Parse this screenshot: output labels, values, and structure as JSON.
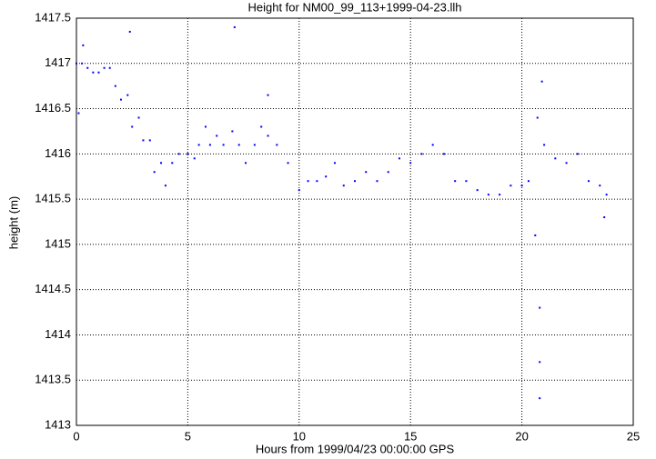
{
  "chart_data": {
    "type": "scatter",
    "title": "Height for NM00_99_113+1999-04-23.llh",
    "x_label": "Hours from 1999/04/23 00:00:00 GPS",
    "y_label": "height (m)",
    "xlim": [
      0,
      25
    ],
    "ylim": [
      1413,
      1417.5
    ],
    "xticks": [
      0,
      5,
      10,
      15,
      20,
      25
    ],
    "yticks": [
      1413,
      1413.5,
      1414,
      1414.5,
      1415,
      1415.5,
      1416,
      1416.5,
      1417,
      1417.5
    ],
    "grid": true,
    "color": "#0000ff",
    "x": [
      0,
      0.25,
      0.5,
      0.75,
      1,
      1.25,
      1.5,
      1.75,
      2,
      2.3,
      2.5,
      2.8,
      3,
      3.3,
      3.5,
      3.8,
      4,
      4.3,
      4.6,
      5,
      5.3,
      5.5,
      5.8,
      6,
      6.3,
      6.6,
      7,
      7.3,
      7.6,
      8,
      8.3,
      8.6,
      9,
      9.5,
      10,
      10.4,
      10.8,
      11.2,
      11.6,
      12,
      12.5,
      13,
      13.5,
      14,
      14.5,
      15,
      15.5,
      16,
      16.5,
      17,
      17.5,
      18,
      18.5,
      19,
      19.5,
      20,
      20.3,
      20.7,
      21,
      21.5,
      22,
      22.5,
      23,
      23.5,
      23.8,
      7.1,
      8.6,
      2.4,
      20.6,
      20.8,
      20.8,
      20.8,
      20.9,
      0.1,
      0.3,
      23.7
    ],
    "y": [
      1417,
      1417,
      1416.95,
      1416.9,
      1416.9,
      1416.95,
      1416.95,
      1416.75,
      1416.6,
      1416.65,
      1416.3,
      1416.4,
      1416.15,
      1416.15,
      1415.8,
      1415.9,
      1415.65,
      1415.9,
      1416,
      1416,
      1415.95,
      1416.1,
      1416.3,
      1416.1,
      1416.2,
      1416.1,
      1416.25,
      1416.1,
      1415.9,
      1416.1,
      1416.3,
      1416.2,
      1416.1,
      1415.9,
      1415.6,
      1415.7,
      1415.7,
      1415.75,
      1415.9,
      1415.65,
      1415.7,
      1415.8,
      1415.7,
      1415.8,
      1415.95,
      1415.9,
      1416,
      1416.1,
      1416,
      1415.7,
      1415.7,
      1415.6,
      1415.55,
      1415.55,
      1415.65,
      1415.65,
      1415.7,
      1416.4,
      1416.1,
      1415.95,
      1415.9,
      1416,
      1415.7,
      1415.65,
      1415.55,
      1417.4,
      1416.65,
      1417.35,
      1415.1,
      1414.3,
      1413.7,
      1413.3,
      1416.8,
      1416.45,
      1417.2,
      1415.3
    ]
  }
}
